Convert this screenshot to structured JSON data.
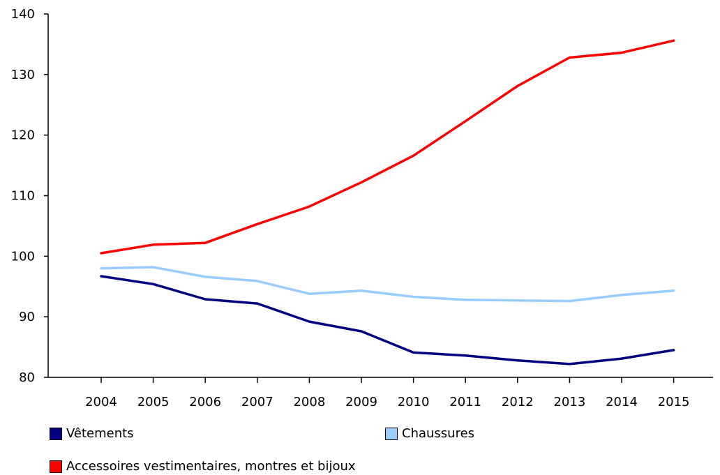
{
  "chart_data": {
    "type": "line",
    "x": [
      "2004",
      "2005",
      "2006",
      "2007",
      "2008",
      "2009",
      "2010",
      "2011",
      "2012",
      "2013",
      "2014",
      "2015"
    ],
    "ylim": [
      80,
      140
    ],
    "yticks": [
      "80",
      "90",
      "100",
      "110",
      "120",
      "130",
      "140"
    ],
    "grid": false,
    "legend_position": "bottom",
    "series": [
      {
        "name": "Vêtements",
        "color": "#000080",
        "values": [
          96.7,
          95.4,
          92.9,
          92.2,
          89.2,
          87.6,
          84.1,
          83.6,
          82.8,
          82.2,
          83.1,
          84.5
        ]
      },
      {
        "name": "Chaussures",
        "color": "#99ccff",
        "values": [
          98.0,
          98.2,
          96.6,
          95.9,
          93.8,
          94.3,
          93.3,
          92.8,
          92.7,
          92.6,
          93.6,
          94.3
        ]
      },
      {
        "name": "Accessoires vestimentaires, montres et bijoux",
        "color": "#ff0000",
        "values": [
          100.5,
          101.9,
          102.2,
          105.3,
          108.2,
          112.2,
          116.6,
          122.3,
          128.1,
          132.8,
          133.6,
          135.6
        ]
      }
    ]
  }
}
